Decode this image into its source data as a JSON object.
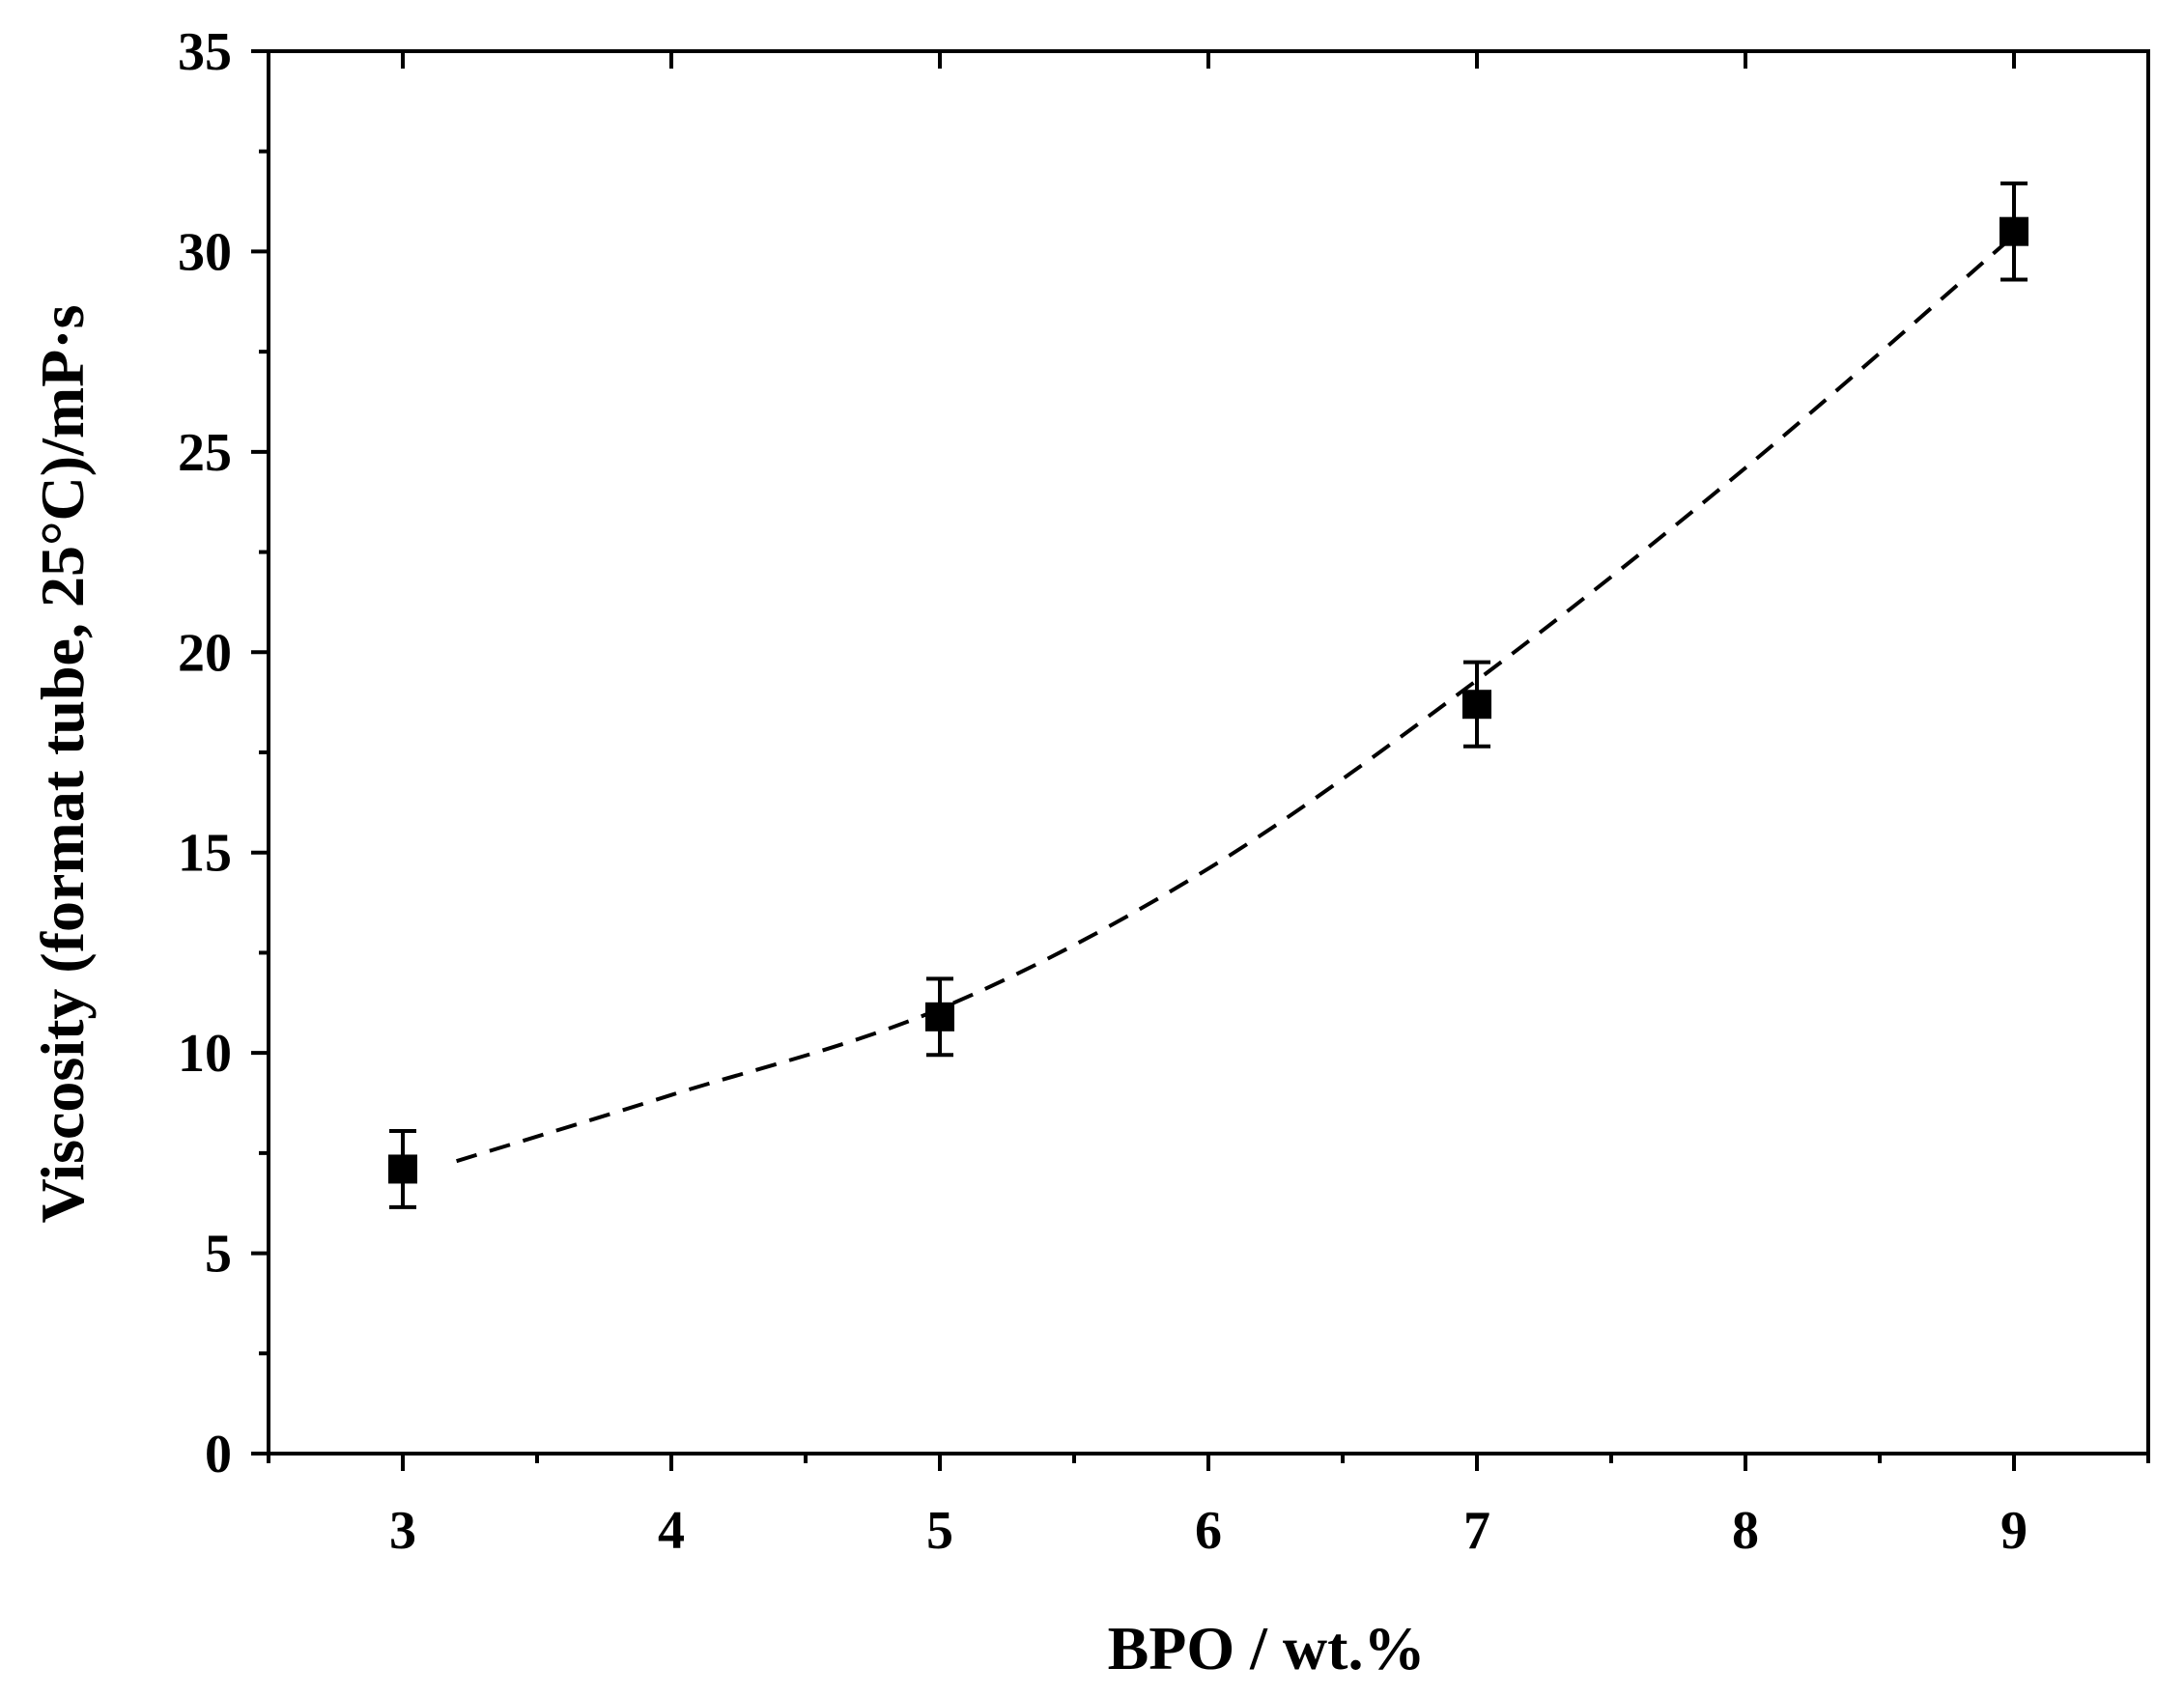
{
  "chart_data": {
    "type": "scatter",
    "title": "",
    "xlabel": "BPO / wt.%",
    "ylabel": "Viscosity (format tube, 25°C)/mP·s",
    "xlim": [
      2.5,
      9.5
    ],
    "ylim": [
      0,
      35
    ],
    "x_ticks": [
      3,
      4,
      5,
      6,
      7,
      8,
      9
    ],
    "x_minor_ticks": [
      2.5,
      3.5,
      4.5,
      5.5,
      6.5,
      7.5,
      8.5,
      9.5
    ],
    "y_ticks": [
      0,
      5,
      10,
      15,
      20,
      25,
      30,
      35
    ],
    "y_minor_ticks": [
      2.5,
      7.5,
      12.5,
      17.5,
      22.5,
      27.5,
      32.5
    ],
    "x_tick_labels": [
      "3",
      "4",
      "5",
      "6",
      "7",
      "8",
      "9"
    ],
    "y_tick_labels": [
      "0",
      "5",
      "10",
      "15",
      "20",
      "25",
      "30",
      "35"
    ],
    "grid": false,
    "legend": null,
    "marker": "square",
    "color": "#000000",
    "series": [
      {
        "x": [
          3,
          5,
          7,
          9
        ],
        "y": [
          7.1,
          10.9,
          18.7,
          30.5
        ],
        "error": [
          0.95,
          0.95,
          1.05,
          1.2
        ]
      }
    ],
    "fit_line": {
      "style": "dashed",
      "x": [
        3.2,
        4,
        5,
        6,
        7,
        8,
        9
      ],
      "y": [
        7.3,
        8.95,
        11.1,
        14.6,
        19.3,
        24.6,
        30.4
      ]
    }
  }
}
